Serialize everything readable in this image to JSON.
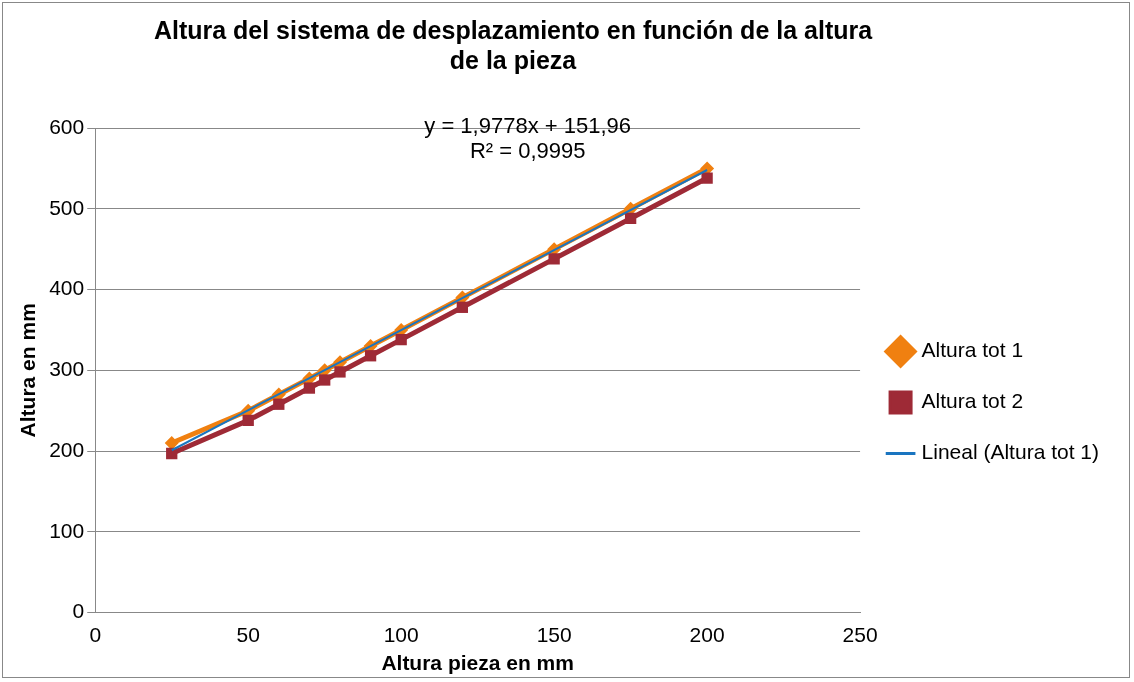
{
  "chart_data": {
    "type": "line",
    "title": "Altura del sistema de desplazamiento en función de la altura de la pieza",
    "xlabel": "Altura pieza en mm",
    "ylabel": "Altura en mm",
    "xlim": [
      0,
      250
    ],
    "xticks": [
      0,
      50,
      100,
      150,
      200,
      250
    ],
    "ylim": [
      0,
      600
    ],
    "yticks": [
      0,
      100,
      200,
      300,
      400,
      500,
      600
    ],
    "grid": "y",
    "legend": "right",
    "annotations": [
      "y = 1,9778x + 151,96",
      "R² = 0,9995"
    ],
    "series": [
      {
        "name": "Altura tot 1",
        "color": "#f08010",
        "marker": "diamond",
        "x": [
          25,
          50,
          60,
          70,
          75,
          80,
          90,
          100,
          120,
          150,
          175,
          200
        ],
        "values": [
          210,
          250,
          270,
          290,
          300,
          310,
          330,
          350,
          390,
          450,
          500,
          550
        ]
      },
      {
        "name": "Altura tot 2",
        "color": "#9e2a36",
        "marker": "square",
        "x": [
          25,
          50,
          60,
          70,
          75,
          80,
          90,
          100,
          120,
          150,
          175,
          200
        ],
        "values": [
          197,
          238,
          258,
          278,
          288,
          298,
          318,
          338,
          378,
          438,
          488,
          538
        ]
      },
      {
        "name": "Lineal (Altura tot 1)",
        "color": "#1a75c0",
        "marker": "none",
        "x": [
          25,
          200
        ],
        "values": [
          201,
          548
        ]
      }
    ]
  }
}
